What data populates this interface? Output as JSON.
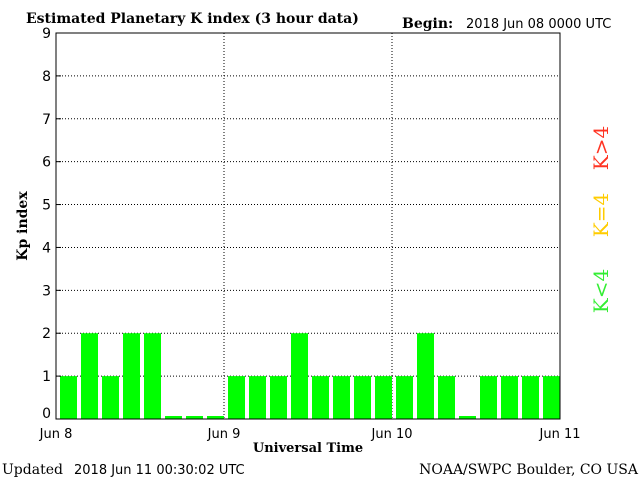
{
  "chart_data": {
    "type": "bar",
    "title": "Estimated Planetary K index (3 hour data)",
    "begin_label": "Begin:",
    "begin_value": "2018 Jun 08 0000 UTC",
    "ylabel": "Kp index",
    "xlabel": "Universal Time",
    "ylim": [
      0,
      9
    ],
    "yticks": [
      "0",
      "1",
      "2",
      "3",
      "4",
      "5",
      "6",
      "7",
      "8",
      "9"
    ],
    "xticks": [
      "Jun 8",
      "Jun 9",
      "Jun 10",
      "Jun 11"
    ],
    "values": [
      1,
      2,
      1,
      2,
      2,
      0,
      0,
      0,
      1,
      1,
      1,
      2,
      1,
      1,
      1,
      1,
      1,
      2,
      1,
      0,
      1,
      1,
      1,
      1
    ],
    "bar_color": "#00ff00",
    "grid": "dotted, at each day and each integer Kp",
    "legend": [
      {
        "text": "K<4",
        "color": "#33ee33"
      },
      {
        "text": "K=4",
        "color": "#ffcc00"
      },
      {
        "text": "K>4",
        "color": "#ff3322"
      }
    ]
  },
  "footer": {
    "updated_label": "Updated",
    "updated_value": "2018 Jun 11 00:30:02 UTC",
    "credit": "NOAA/SWPC Boulder, CO USA"
  }
}
